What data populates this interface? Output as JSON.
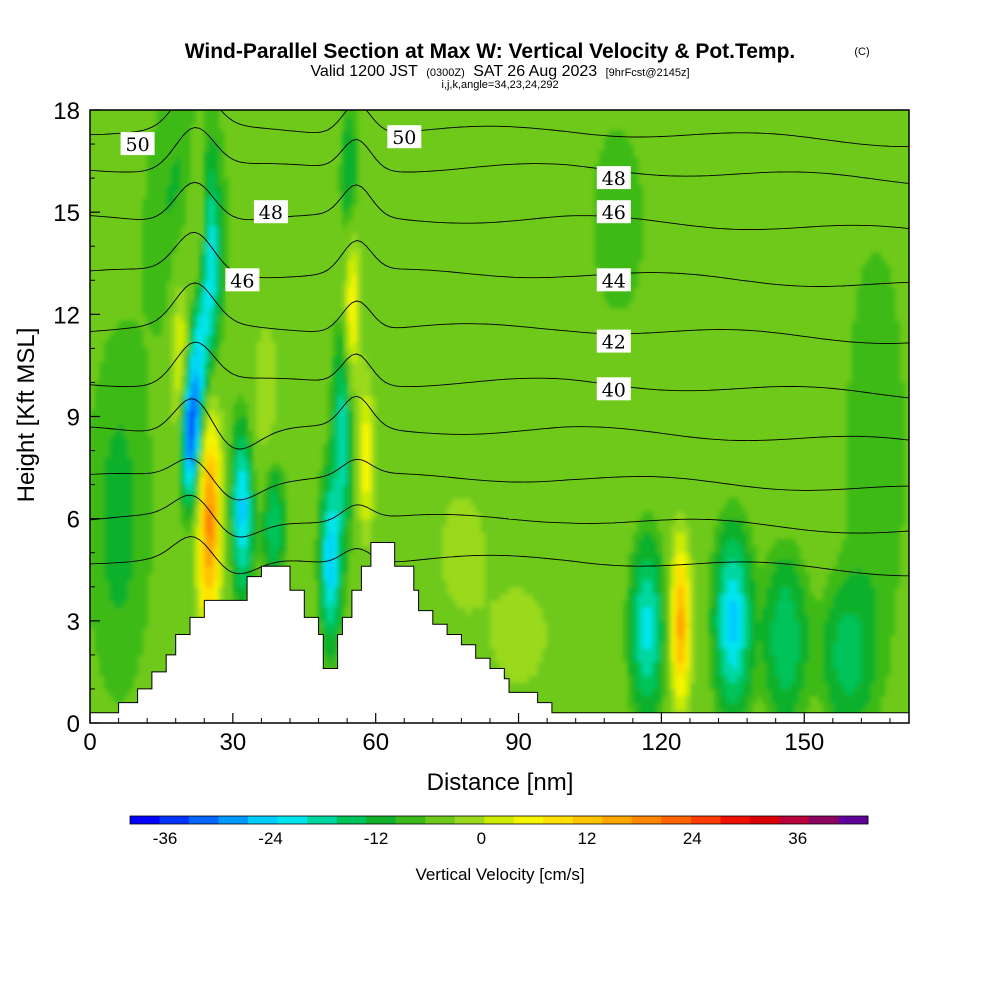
{
  "title": {
    "main": "Wind-Parallel Section at Max W: Vertical Velocity & Pot.Temp.",
    "units_tag": "(C)",
    "valid_prefix": "Valid 1200 JST",
    "valid_utc": "(0300Z)",
    "valid_date": "SAT 26 Aug 2023",
    "fcst": "[9hrFcst@2145z]",
    "indices": "i,j,k,angle=34,23,24,292"
  },
  "chart_data": {
    "type": "heatmap",
    "xlabel": "Distance [nm]",
    "ylabel": "Height [Kft MSL]",
    "xlim": [
      0,
      172
    ],
    "ylim": [
      0,
      18
    ],
    "x_ticks": [
      "0",
      "30",
      "60",
      "90",
      "120",
      "150"
    ],
    "y_ticks": [
      "0",
      "3",
      "6",
      "9",
      "12",
      "15",
      "18"
    ],
    "field": "Vertical Velocity [cm/s]",
    "contour_field": "Potential Temperature [C]",
    "colorbar": {
      "label": "Vertical Velocity [cm/s]",
      "ticks": [
        "-36",
        "-24",
        "-12",
        "0",
        "12",
        "24",
        "36"
      ],
      "tick_values": [
        -36,
        -24,
        -12,
        0,
        12,
        24,
        36
      ],
      "range": [
        -40,
        44
      ],
      "step": 4,
      "colors": [
        "#0000ff",
        "#0033ff",
        "#0066ff",
        "#0099ff",
        "#00ccff",
        "#00e5ee",
        "#00d7a0",
        "#00c35a",
        "#11b02a",
        "#3cba19",
        "#6ec91a",
        "#9ad91e",
        "#ccec00",
        "#f5f500",
        "#ffe000",
        "#ffc400",
        "#ffa600",
        "#ff8600",
        "#ff6400",
        "#ff3c00",
        "#f01000",
        "#d80000",
        "#b8003a",
        "#8c0060",
        "#60009a"
      ]
    },
    "terrain": [
      [
        0,
        0.3
      ],
      [
        6,
        0.3
      ],
      [
        6,
        0.6
      ],
      [
        10,
        0.6
      ],
      [
        10,
        1
      ],
      [
        13,
        1
      ],
      [
        13,
        1.5
      ],
      [
        16,
        1.5
      ],
      [
        16,
        2
      ],
      [
        18,
        2
      ],
      [
        18,
        2.6
      ],
      [
        21,
        2.6
      ],
      [
        21,
        3.1
      ],
      [
        24,
        3.1
      ],
      [
        24,
        3.6
      ],
      [
        33,
        3.6
      ],
      [
        33,
        4.3
      ],
      [
        36,
        4.3
      ],
      [
        36,
        4.6
      ],
      [
        42,
        4.6
      ],
      [
        42,
        3.9
      ],
      [
        45,
        3.9
      ],
      [
        45,
        3.1
      ],
      [
        48,
        3.1
      ],
      [
        48,
        2.6
      ],
      [
        49,
        2.6
      ],
      [
        49,
        1.6
      ],
      [
        52,
        1.6
      ],
      [
        52,
        2.6
      ],
      [
        53,
        2.6
      ],
      [
        53,
        3.1
      ],
      [
        55,
        3.1
      ],
      [
        55,
        3.9
      ],
      [
        57,
        3.9
      ],
      [
        57,
        4.6
      ],
      [
        59,
        4.6
      ],
      [
        59,
        5.3
      ],
      [
        64,
        5.3
      ],
      [
        64,
        4.6
      ],
      [
        68,
        4.6
      ],
      [
        68,
        3.9
      ],
      [
        69,
        3.9
      ],
      [
        69,
        3.3
      ],
      [
        72,
        3.3
      ],
      [
        72,
        2.9
      ],
      [
        75,
        2.9
      ],
      [
        75,
        2.6
      ],
      [
        78,
        2.6
      ],
      [
        78,
        2.3
      ],
      [
        81,
        2.3
      ],
      [
        81,
        1.9
      ],
      [
        84,
        1.9
      ],
      [
        84,
        1.6
      ],
      [
        87,
        1.6
      ],
      [
        87,
        1.3
      ],
      [
        88,
        1.3
      ],
      [
        88,
        0.9
      ],
      [
        94,
        0.9
      ],
      [
        94,
        0.6
      ],
      [
        97,
        0.6
      ],
      [
        97,
        0.3
      ],
      [
        172,
        0.3
      ],
      [
        172,
        0
      ],
      [
        0,
        0
      ]
    ],
    "updrafts": [
      {
        "x": 25,
        "y": 6.0,
        "sx": 1.8,
        "sy": 2.4,
        "w": 30
      },
      {
        "x": 19,
        "y": 10.5,
        "sx": 1.4,
        "sy": 2.0,
        "w": 16
      },
      {
        "x": 22.5,
        "y": 13.5,
        "sx": 1.4,
        "sy": 2.0,
        "w": 14
      },
      {
        "x": 37,
        "y": 9.5,
        "sx": 2.5,
        "sy": 2.0,
        "w": 7
      },
      {
        "x": 55,
        "y": 12.5,
        "sx": 1.2,
        "sy": 1.8,
        "w": 18
      },
      {
        "x": 58,
        "y": 7.8,
        "sx": 1.2,
        "sy": 1.6,
        "w": 16
      },
      {
        "x": 124,
        "y": 2.9,
        "sx": 1.5,
        "sy": 1.7,
        "w": 26
      },
      {
        "x": 78,
        "y": 5.0,
        "sx": 4.0,
        "sy": 1.5,
        "w": 6
      },
      {
        "x": 90,
        "y": 2.5,
        "sx": 5.0,
        "sy": 1.2,
        "w": 6
      },
      {
        "x": 100,
        "y": 10.0,
        "sx": 18,
        "sy": 6.0,
        "w": 2
      }
    ],
    "downdrafts": [
      {
        "x": 21,
        "y": 8.5,
        "sx": 1.4,
        "sy": 1.4,
        "w": -34
      },
      {
        "x": 23,
        "y": 11.0,
        "sx": 1.4,
        "sy": 1.8,
        "w": -24
      },
      {
        "x": 25.5,
        "y": 13.5,
        "sx": 1.2,
        "sy": 1.8,
        "w": -16
      },
      {
        "x": 32,
        "y": 6.3,
        "sx": 1.5,
        "sy": 1.6,
        "w": -22
      },
      {
        "x": 38.5,
        "y": 6.0,
        "sx": 1.6,
        "sy": 1.4,
        "w": -12
      },
      {
        "x": 50.5,
        "y": 4.8,
        "sx": 1.4,
        "sy": 1.6,
        "w": -22
      },
      {
        "x": 53,
        "y": 8.5,
        "sx": 1.3,
        "sy": 2.0,
        "w": -16
      },
      {
        "x": 54.5,
        "y": 15.5,
        "sx": 1.2,
        "sy": 1.8,
        "w": -10
      },
      {
        "x": 117,
        "y": 2.8,
        "sx": 2.4,
        "sy": 1.7,
        "w": -18
      },
      {
        "x": 135,
        "y": 3.0,
        "sx": 2.5,
        "sy": 1.7,
        "w": -22
      },
      {
        "x": 146,
        "y": 2.5,
        "sx": 3.0,
        "sy": 1.6,
        "w": -12
      },
      {
        "x": 159,
        "y": 2.0,
        "sx": 3.5,
        "sy": 1.4,
        "w": -10
      },
      {
        "x": 20,
        "y": 15.0,
        "sx": 6,
        "sy": 3.0,
        "w": -5
      },
      {
        "x": 6,
        "y": 6.0,
        "sx": 5,
        "sy": 4.0,
        "w": -5
      },
      {
        "x": 110,
        "y": 14.0,
        "sx": 8,
        "sy": 4.0,
        "w": -4
      },
      {
        "x": 165,
        "y": 8.0,
        "sx": 5,
        "sy": 5.0,
        "w": -4
      }
    ],
    "isentropes": [
      {
        "theta": 50,
        "base": 17.4
      },
      {
        "theta": 48,
        "base": 16.3
      },
      {
        "theta": 46,
        "base": 14.8
      },
      {
        "theta": 44,
        "base": 13.2
      },
      {
        "theta": 42,
        "base": 11.6
      },
      {
        "theta": 40,
        "base": 10.0
      },
      {
        "theta": 38,
        "base": 8.6
      },
      {
        "theta": 36,
        "base": 7.2
      },
      {
        "theta": 34,
        "base": 6.0
      },
      {
        "theta": 32,
        "base": 4.8
      }
    ],
    "contour_labels": [
      {
        "text": "50",
        "x": 10,
        "y": 17.0,
        "rot": 0
      },
      {
        "text": "48",
        "x": 38,
        "y": 15.0,
        "rot": 0
      },
      {
        "text": "50",
        "x": 66,
        "y": 17.2,
        "rot": 0
      },
      {
        "text": "48",
        "x": 110,
        "y": 16.0,
        "rot": 0
      },
      {
        "text": "46",
        "x": 32,
        "y": 13.0,
        "rot": 0
      },
      {
        "text": "46",
        "x": 110,
        "y": 15.0,
        "rot": 0
      },
      {
        "text": "44",
        "x": 110,
        "y": 13.0,
        "rot": 0
      },
      {
        "text": "42",
        "x": 110,
        "y": 11.2,
        "rot": 0
      },
      {
        "text": "40",
        "x": 110,
        "y": 9.8,
        "rot": 0
      }
    ]
  }
}
